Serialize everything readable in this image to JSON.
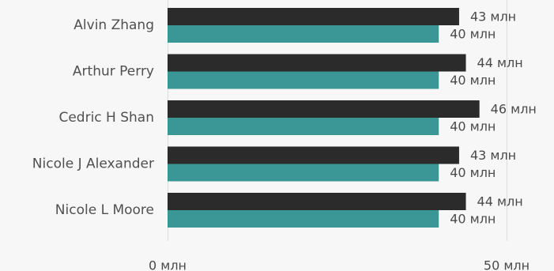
{
  "chart_data": {
    "type": "bar",
    "orientation": "horizontal",
    "categories": [
      "Alvin Zhang",
      "Arthur Perry",
      "Cedric H Shan",
      "Nicole J Alexander",
      "Nicole L Moore"
    ],
    "series": [
      {
        "values": [
          43,
          44,
          46,
          43,
          44
        ],
        "labels": [
          "43 млн",
          "44 млн",
          "46 млн",
          "43 млн",
          "44 млн"
        ],
        "color": "#2b2b2b"
      },
      {
        "values": [
          40,
          40,
          40,
          40,
          40
        ],
        "labels": [
          "40 млн",
          "40 млн",
          "40 млн",
          "40 млн",
          "40 млн"
        ],
        "color": "#3a9795"
      }
    ],
    "xlim": [
      0,
      50
    ],
    "xticks": [
      0,
      50
    ],
    "xtick_labels": [
      "0 млн",
      "50 млн"
    ],
    "grid": true,
    "legend": "none"
  },
  "colors": {
    "background": "#f7f7f7",
    "category_text": "#505050",
    "label_text": "#4a4a4a",
    "gridline": "#dcdcdc"
  }
}
